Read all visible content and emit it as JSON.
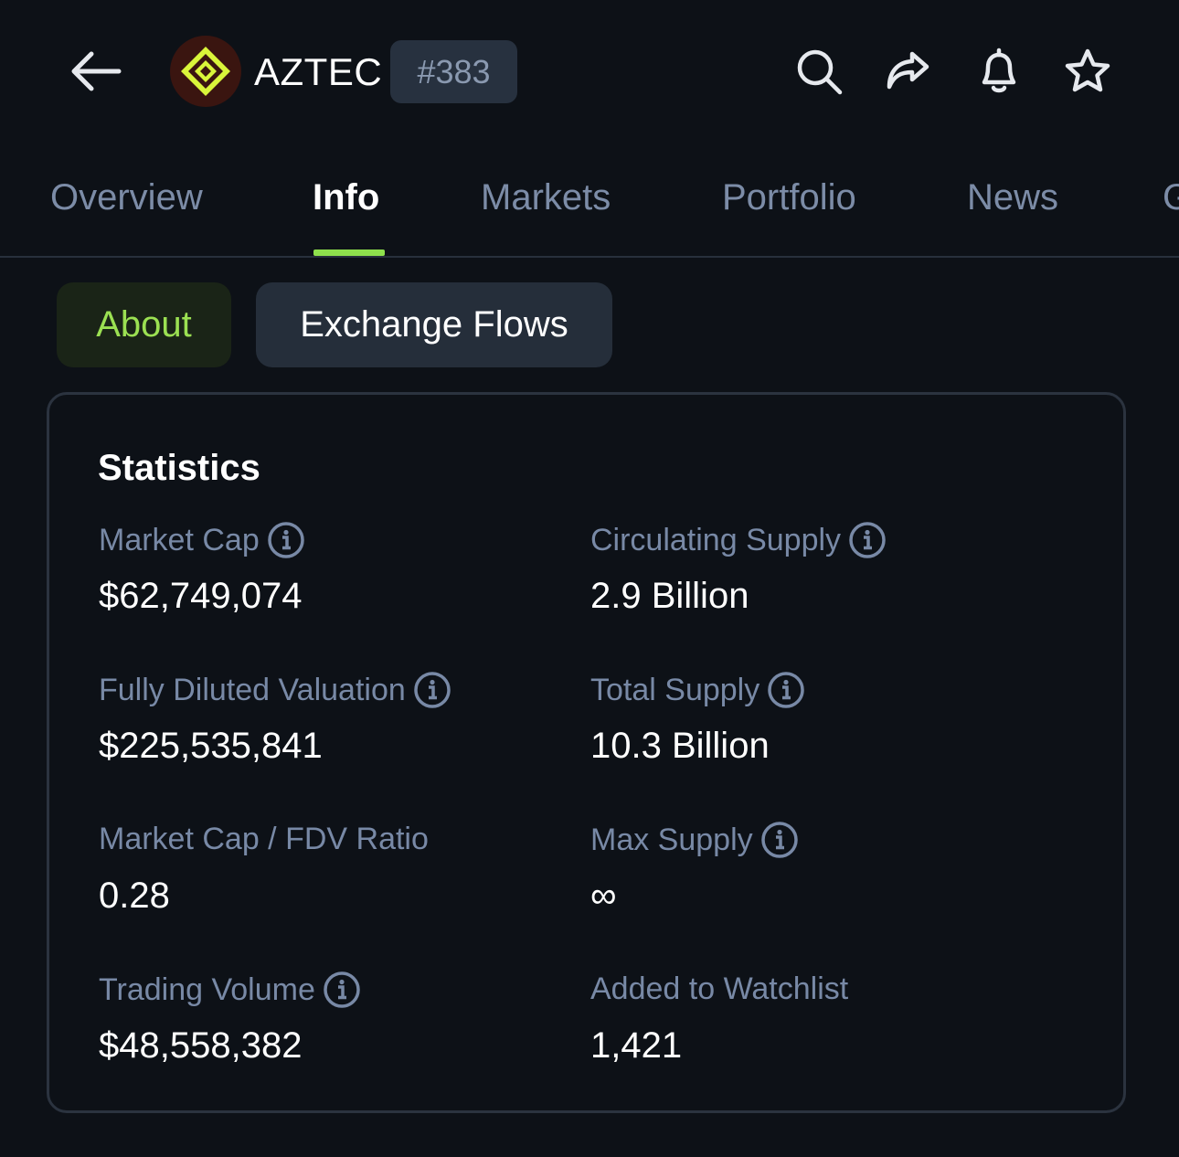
{
  "header": {
    "coin_name": "AZTEC",
    "rank": "#383"
  },
  "tabs": [
    {
      "label": "Overview",
      "active": false
    },
    {
      "label": "Info",
      "active": true
    },
    {
      "label": "Markets",
      "active": false
    },
    {
      "label": "Portfolio",
      "active": false
    },
    {
      "label": "News",
      "active": false
    },
    {
      "label": "G",
      "active": false
    }
  ],
  "subtabs": [
    {
      "label": "About",
      "active": true
    },
    {
      "label": "Exchange Flows",
      "active": false
    }
  ],
  "statistics": {
    "title": "Statistics",
    "left": [
      {
        "label": "Market Cap",
        "value": "$62,749,074",
        "info": true
      },
      {
        "label": "Fully Diluted Valuation",
        "value": "$225,535,841",
        "info": true
      },
      {
        "label": "Market Cap / FDV Ratio",
        "value": "0.28",
        "info": false
      },
      {
        "label": "Trading Volume",
        "value": "$48,558,382",
        "info": true
      }
    ],
    "right": [
      {
        "label": "Circulating Supply",
        "value": "2.9 Billion",
        "info": true
      },
      {
        "label": "Total Supply",
        "value": "10.3 Billion",
        "info": true
      },
      {
        "label": "Max Supply",
        "value": "∞",
        "info": true
      },
      {
        "label": "Added to Watchlist",
        "value": "1,421",
        "info": false
      }
    ]
  },
  "colors": {
    "background": "#0d1117",
    "accent": "#8ee04c",
    "label": "#7889a6"
  },
  "icons": [
    "back-arrow-icon",
    "aztec-logo-icon",
    "search-icon",
    "share-icon",
    "bell-icon",
    "star-icon",
    "info-icon"
  ]
}
